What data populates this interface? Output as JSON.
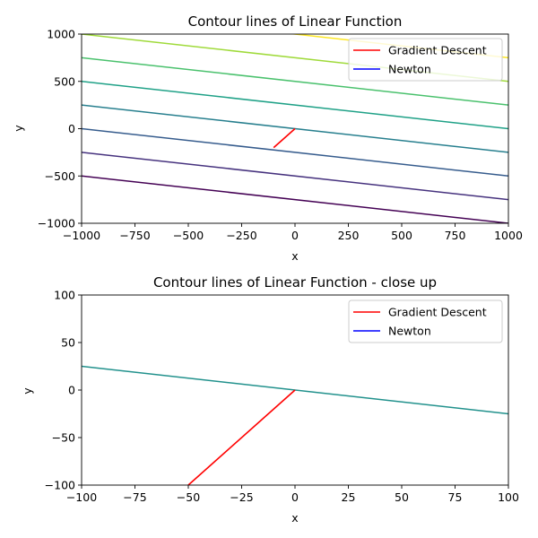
{
  "chart_data": [
    {
      "type": "line",
      "title": "Contour lines of Linear Function",
      "xlabel": "x",
      "ylabel": "y",
      "xlim": [
        -1000,
        1000
      ],
      "ylim": [
        -1000,
        1000
      ],
      "xticks": [
        -1000,
        -750,
        -500,
        -250,
        0,
        250,
        500,
        750,
        1000
      ],
      "yticks": [
        -1000,
        -500,
        0,
        500,
        1000
      ],
      "xtick_labels": [
        "−1000",
        "−750",
        "−500",
        "−250",
        "0",
        "250",
        "500",
        "750",
        "1000"
      ],
      "ytick_labels": [
        "−1000",
        "−500",
        "0",
        "500",
        "1000"
      ],
      "grid": false,
      "legend_position": "top-right",
      "legend": [
        {
          "label": "Gradient Descent",
          "color": "#ff0000"
        },
        {
          "label": "Newton",
          "color": "#0000ff"
        }
      ],
      "contour_function": "z = x + 4y",
      "contours": [
        {
          "level": -3000,
          "color": "#440154"
        },
        {
          "level": -2000,
          "color": "#46327e"
        },
        {
          "level": -1000,
          "color": "#365c8d"
        },
        {
          "level": 0,
          "color": "#277f8e"
        },
        {
          "level": 1000,
          "color": "#1fa187"
        },
        {
          "level": 2000,
          "color": "#4ac16d"
        },
        {
          "level": 3000,
          "color": "#9fda3a"
        },
        {
          "level": 4000,
          "color": "#fde725"
        }
      ],
      "series": [
        {
          "name": "Gradient Descent",
          "color": "#ff0000",
          "x": [
            -100,
            0
          ],
          "y": [
            -200,
            0
          ]
        },
        {
          "name": "Newton",
          "color": "#0000ff",
          "x": [],
          "y": []
        }
      ]
    },
    {
      "type": "line",
      "title": "Contour lines of Linear Function - close up",
      "xlabel": "x",
      "ylabel": "y",
      "xlim": [
        -100,
        100
      ],
      "ylim": [
        -100,
        100
      ],
      "xticks": [
        -100,
        -75,
        -50,
        -25,
        0,
        25,
        50,
        75,
        100
      ],
      "yticks": [
        -100,
        -50,
        0,
        50,
        100
      ],
      "xtick_labels": [
        "−100",
        "−75",
        "−50",
        "−25",
        "0",
        "25",
        "50",
        "75",
        "100"
      ],
      "ytick_labels": [
        "−100",
        "−50",
        "0",
        "50",
        "100"
      ],
      "grid": false,
      "legend_position": "top-right",
      "legend": [
        {
          "label": "Gradient Descent",
          "color": "#ff0000"
        },
        {
          "label": "Newton",
          "color": "#0000ff"
        }
      ],
      "contour_function": "z = x + 4y",
      "contours": [
        {
          "level": 0,
          "color": "#21918c"
        }
      ],
      "series": [
        {
          "name": "Gradient Descent",
          "color": "#ff0000",
          "x": [
            -50,
            0
          ],
          "y": [
            -100,
            0
          ]
        },
        {
          "name": "Newton",
          "color": "#0000ff",
          "x": [],
          "y": []
        }
      ]
    }
  ]
}
